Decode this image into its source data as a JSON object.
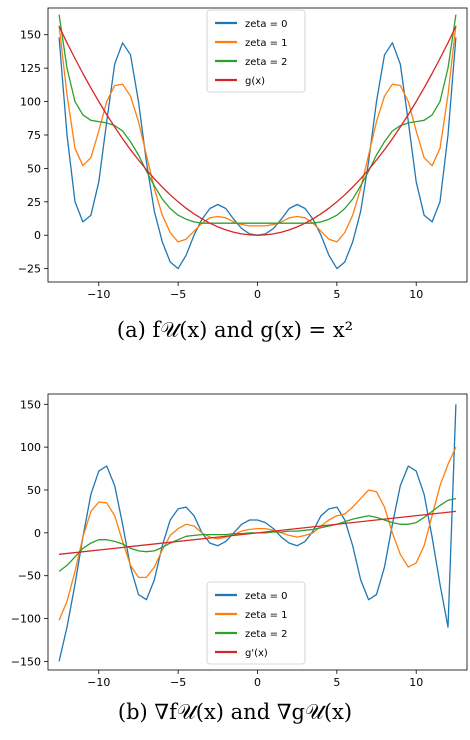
{
  "chart_data": [
    {
      "type": "line",
      "xlim": [
        -13.2,
        13.2
      ],
      "ylim": [
        -35,
        170
      ],
      "xticks": [
        -10,
        -5,
        0,
        5,
        10
      ],
      "yticks": [
        -25,
        0,
        25,
        50,
        75,
        100,
        125,
        150
      ],
      "grid": false,
      "legend_position": "top-center",
      "series": [
        {
          "name": "zeta = 0",
          "color": "#1f77b4",
          "x": [
            -12.5,
            -12,
            -11.5,
            -11,
            -10.5,
            -10,
            -9.5,
            -9,
            -8.5,
            -8,
            -7.5,
            -7,
            -6.5,
            -6,
            -5.5,
            -5,
            -4.5,
            -4,
            -3.5,
            -3,
            -2.5,
            -2,
            -1.5,
            -1,
            -0.5,
            0,
            0.5,
            1,
            1.5,
            2,
            2.5,
            3,
            3.5,
            4,
            4.5,
            5,
            5.5,
            6,
            6.5,
            7,
            7.5,
            8,
            8.5,
            9,
            9.5,
            10,
            10.5,
            11,
            11.5,
            12,
            12.5
          ],
          "y": [
            148,
            75,
            25,
            10,
            15,
            40,
            85,
            128,
            144,
            135,
            100,
            55,
            18,
            -5,
            -20,
            -25,
            -15,
            0,
            12,
            20,
            23,
            20,
            12,
            5,
            1,
            0,
            1,
            5,
            12,
            20,
            23,
            20,
            12,
            0,
            -15,
            -25,
            -20,
            -5,
            18,
            55,
            100,
            135,
            144,
            128,
            85,
            40,
            15,
            10,
            25,
            75,
            148
          ]
        },
        {
          "name": "zeta = 1",
          "color": "#ff7f0e",
          "x": [
            -12.5,
            -12,
            -11.5,
            -11,
            -10.5,
            -10,
            -9.5,
            -9,
            -8.5,
            -8,
            -7.5,
            -7,
            -6.5,
            -6,
            -5.5,
            -5,
            -4.5,
            -4,
            -3.5,
            -3,
            -2.5,
            -2,
            -1.5,
            -1,
            -0.5,
            0,
            0.5,
            1,
            1.5,
            2,
            2.5,
            3,
            3.5,
            4,
            4.5,
            5,
            5.5,
            6,
            6.5,
            7,
            7.5,
            8,
            8.5,
            9,
            9.5,
            10,
            10.5,
            11,
            11.5,
            12,
            12.5
          ],
          "y": [
            157,
            105,
            65,
            52,
            58,
            78,
            100,
            112,
            113,
            104,
            85,
            60,
            35,
            15,
            2,
            -5,
            -3,
            3,
            9,
            13,
            14,
            13,
            10,
            8,
            7,
            7,
            7,
            8,
            10,
            13,
            14,
            13,
            9,
            3,
            -3,
            -5,
            2,
            15,
            35,
            60,
            85,
            104,
            113,
            112,
            100,
            78,
            58,
            52,
            65,
            105,
            157
          ]
        },
        {
          "name": "zeta = 2",
          "color": "#2ca02c",
          "x": [
            -12.5,
            -12,
            -11.5,
            -11,
            -10.5,
            -10,
            -9.5,
            -9,
            -8.5,
            -8,
            -7.5,
            -7,
            -6.5,
            -6,
            -5.5,
            -5,
            -4.5,
            -4,
            -3.5,
            -3,
            -2.5,
            -2,
            -1.5,
            -1,
            -0.5,
            0,
            0.5,
            1,
            1.5,
            2,
            2.5,
            3,
            3.5,
            4,
            4.5,
            5,
            5.5,
            6,
            6.5,
            7,
            7.5,
            8,
            8.5,
            9,
            9.5,
            10,
            10.5,
            11,
            11.5,
            12,
            12.5
          ],
          "y": [
            165,
            125,
            100,
            90,
            86,
            85,
            84,
            82,
            78,
            70,
            60,
            48,
            37,
            27,
            20,
            15,
            12,
            10,
            9,
            9,
            9,
            9,
            9,
            9,
            9,
            9,
            9,
            9,
            9,
            9,
            9,
            9,
            9,
            10,
            12,
            15,
            20,
            27,
            37,
            48,
            60,
            70,
            78,
            82,
            84,
            85,
            86,
            90,
            100,
            125,
            165
          ]
        },
        {
          "name": "g(x)",
          "color": "#d62728",
          "x": [
            -12.5,
            -12,
            -11.5,
            -11,
            -10.5,
            -10,
            -9.5,
            -9,
            -8.5,
            -8,
            -7.5,
            -7,
            -6.5,
            -6,
            -5.5,
            -5,
            -4.5,
            -4,
            -3.5,
            -3,
            -2.5,
            -2,
            -1.5,
            -1,
            -0.5,
            0,
            0.5,
            1,
            1.5,
            2,
            2.5,
            3,
            3.5,
            4,
            4.5,
            5,
            5.5,
            6,
            6.5,
            7,
            7.5,
            8,
            8.5,
            9,
            9.5,
            10,
            10.5,
            11,
            11.5,
            12,
            12.5
          ],
          "y": [
            156.25,
            144,
            132.25,
            121,
            110.25,
            100,
            90.25,
            81,
            72.25,
            64,
            56.25,
            49,
            42.25,
            36,
            30.25,
            25,
            20.25,
            16,
            12.25,
            9,
            6.25,
            4,
            2.25,
            1,
            0.25,
            0,
            0.25,
            1,
            2.25,
            4,
            6.25,
            9,
            12.25,
            16,
            20.25,
            25,
            30.25,
            36,
            42.25,
            49,
            56.25,
            64,
            72.25,
            81,
            90.25,
            100,
            110.25,
            121,
            132.25,
            144,
            156.25
          ]
        }
      ]
    },
    {
      "type": "line",
      "xlim": [
        -13.2,
        13.2
      ],
      "ylim": [
        -160,
        162
      ],
      "xticks": [
        -10,
        -5,
        0,
        5,
        10
      ],
      "yticks": [
        -150,
        -100,
        -50,
        0,
        50,
        100,
        150
      ],
      "grid": false,
      "legend_position": "lower-center",
      "series": [
        {
          "name": "zeta = 0",
          "color": "#1f77b4",
          "x": [
            -12.5,
            -12,
            -11.5,
            -11,
            -10.5,
            -10,
            -9.5,
            -9,
            -8.5,
            -8,
            -7.5,
            -7,
            -6.5,
            -6,
            -5.5,
            -5,
            -4.5,
            -4,
            -3.5,
            -3,
            -2.5,
            -2,
            -1.5,
            -1,
            -0.5,
            0,
            0.5,
            1,
            1.5,
            2,
            2.5,
            3,
            3.5,
            4,
            4.5,
            5,
            5.5,
            6,
            6.5,
            7,
            7.5,
            8,
            8.5,
            9,
            9.5,
            10,
            10.5,
            11,
            11.5,
            12,
            12.5
          ],
          "y": [
            -150,
            -110,
            -60,
            -5,
            45,
            72,
            78,
            55,
            10,
            -40,
            -72,
            -78,
            -55,
            -15,
            15,
            28,
            30,
            20,
            0,
            -12,
            -15,
            -10,
            0,
            10,
            15,
            15,
            12,
            5,
            -5,
            -12,
            -15,
            -10,
            2,
            20,
            28,
            30,
            15,
            -15,
            -55,
            -78,
            -72,
            -40,
            10,
            55,
            78,
            72,
            45,
            -5,
            -60,
            -110,
            150
          ]
        },
        {
          "name": "zeta = 1",
          "color": "#ff7f0e",
          "x": [
            -12.5,
            -12,
            -11.5,
            -11,
            -10.5,
            -10,
            -9.5,
            -9,
            -8.5,
            -8,
            -7.5,
            -7,
            -6.5,
            -6,
            -5.5,
            -5,
            -4.5,
            -4,
            -3.5,
            -3,
            -2.5,
            -2,
            -1.5,
            -1,
            -0.5,
            0,
            0.5,
            1,
            1.5,
            2,
            2.5,
            3,
            3.5,
            4,
            4.5,
            5,
            5.5,
            6,
            6.5,
            7,
            7.5,
            8,
            8.5,
            9,
            9.5,
            10,
            10.5,
            11,
            11.5,
            12,
            12.5
          ],
          "y": [
            -102,
            -80,
            -45,
            -5,
            25,
            36,
            35,
            20,
            -10,
            -38,
            -52,
            -52,
            -40,
            -20,
            -3,
            5,
            10,
            8,
            0,
            -5,
            -7,
            -5,
            -2,
            2,
            4,
            5,
            5,
            3,
            0,
            -3,
            -5,
            -3,
            0,
            8,
            15,
            20,
            22,
            30,
            40,
            50,
            48,
            30,
            0,
            -25,
            -40,
            -35,
            -15,
            20,
            55,
            80,
            100
          ]
        },
        {
          "name": "zeta = 2",
          "color": "#2ca02c",
          "x": [
            -12.5,
            -12,
            -11.5,
            -11,
            -10.5,
            -10,
            -9.5,
            -9,
            -8.5,
            -8,
            -7.5,
            -7,
            -6.5,
            -6,
            -5.5,
            -5,
            -4.5,
            -4,
            -3.5,
            -3,
            -2.5,
            -2,
            -1.5,
            -1,
            -0.5,
            0,
            0.5,
            1,
            1.5,
            2,
            2.5,
            3,
            3.5,
            4,
            4.5,
            5,
            5.5,
            6,
            6.5,
            7,
            7.5,
            8,
            8.5,
            9,
            9.5,
            10,
            10.5,
            11,
            11.5,
            12,
            12.5
          ],
          "y": [
            -45,
            -38,
            -28,
            -18,
            -12,
            -8,
            -8,
            -10,
            -13,
            -18,
            -21,
            -22,
            -21,
            -17,
            -12,
            -8,
            -4,
            -3,
            -2,
            -2,
            -2,
            -2,
            -1,
            -1,
            0,
            0,
            0,
            1,
            1,
            2,
            2,
            3,
            4,
            6,
            8,
            10,
            13,
            16,
            18,
            20,
            18,
            15,
            12,
            10,
            10,
            12,
            18,
            25,
            32,
            38,
            40
          ]
        },
        {
          "name": "g'(x)",
          "color": "#d62728",
          "x": [
            -12.5,
            12.5
          ],
          "y": [
            -25,
            25
          ]
        }
      ]
    }
  ],
  "captions": {
    "a": "(a) f𝒰(x) and g(x) = x²",
    "b": "(b) ∇f𝒰(x) and ∇g𝒰(x)"
  }
}
